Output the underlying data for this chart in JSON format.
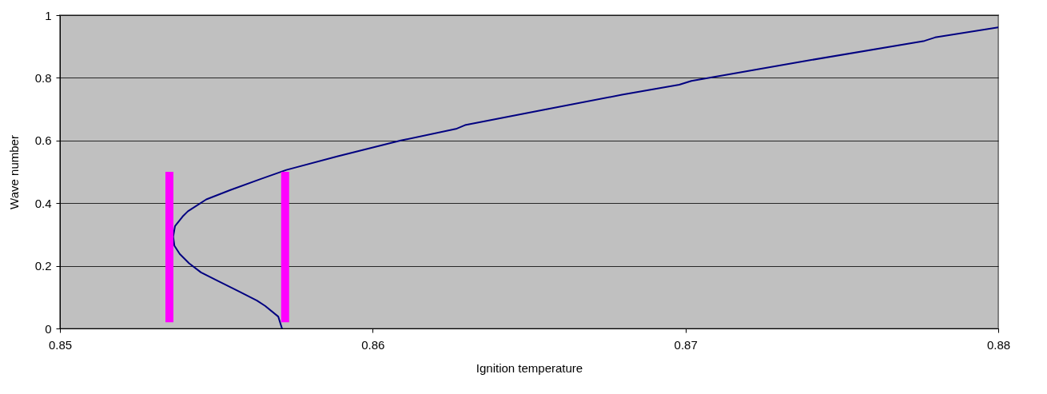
{
  "chart_data": {
    "type": "line",
    "xlabel": "Ignition temperature",
    "ylabel": "Wave number",
    "xlim": [
      0.85,
      0.88
    ],
    "xticks": [
      0.85,
      0.86,
      0.87,
      0.88
    ],
    "ylim": [
      0,
      1
    ],
    "yticks": [
      0,
      0.2,
      0.4,
      0.6,
      0.8,
      1
    ],
    "grid": "y",
    "marker": "none",
    "line_style": "solid",
    "series": [
      {
        "color": "#000080",
        "x": [
          0.8571,
          0.85698,
          0.85656,
          0.8563,
          0.85571,
          0.85503,
          0.85451,
          0.85413,
          0.85383,
          0.85366,
          0.85362,
          0.85368,
          0.85392,
          0.85409,
          0.85468,
          0.85545,
          0.85639,
          0.85724,
          0.85886,
          0.8609,
          0.86269,
          0.86295,
          0.86542,
          0.86797,
          0.8698,
          0.87019,
          0.87402,
          0.87764,
          0.87798,
          0.88
        ],
        "values": [
          0,
          0.038,
          0.072,
          0.089,
          0.119,
          0.153,
          0.179,
          0.208,
          0.238,
          0.264,
          0.293,
          0.327,
          0.357,
          0.374,
          0.412,
          0.442,
          0.476,
          0.506,
          0.549,
          0.6,
          0.638,
          0.649,
          0.697,
          0.746,
          0.778,
          0.79,
          0.857,
          0.918,
          0.929,
          0.961
        ]
      },
      {
        "color": "#ff00ff",
        "x": [
          0.8535,
          0.8535
        ],
        "values": [
          0.02,
          0.5
        ]
      },
      {
        "color": "#ff00ff",
        "x": [
          0.8572,
          0.8572
        ],
        "values": [
          0.02,
          0.5
        ]
      }
    ]
  }
}
